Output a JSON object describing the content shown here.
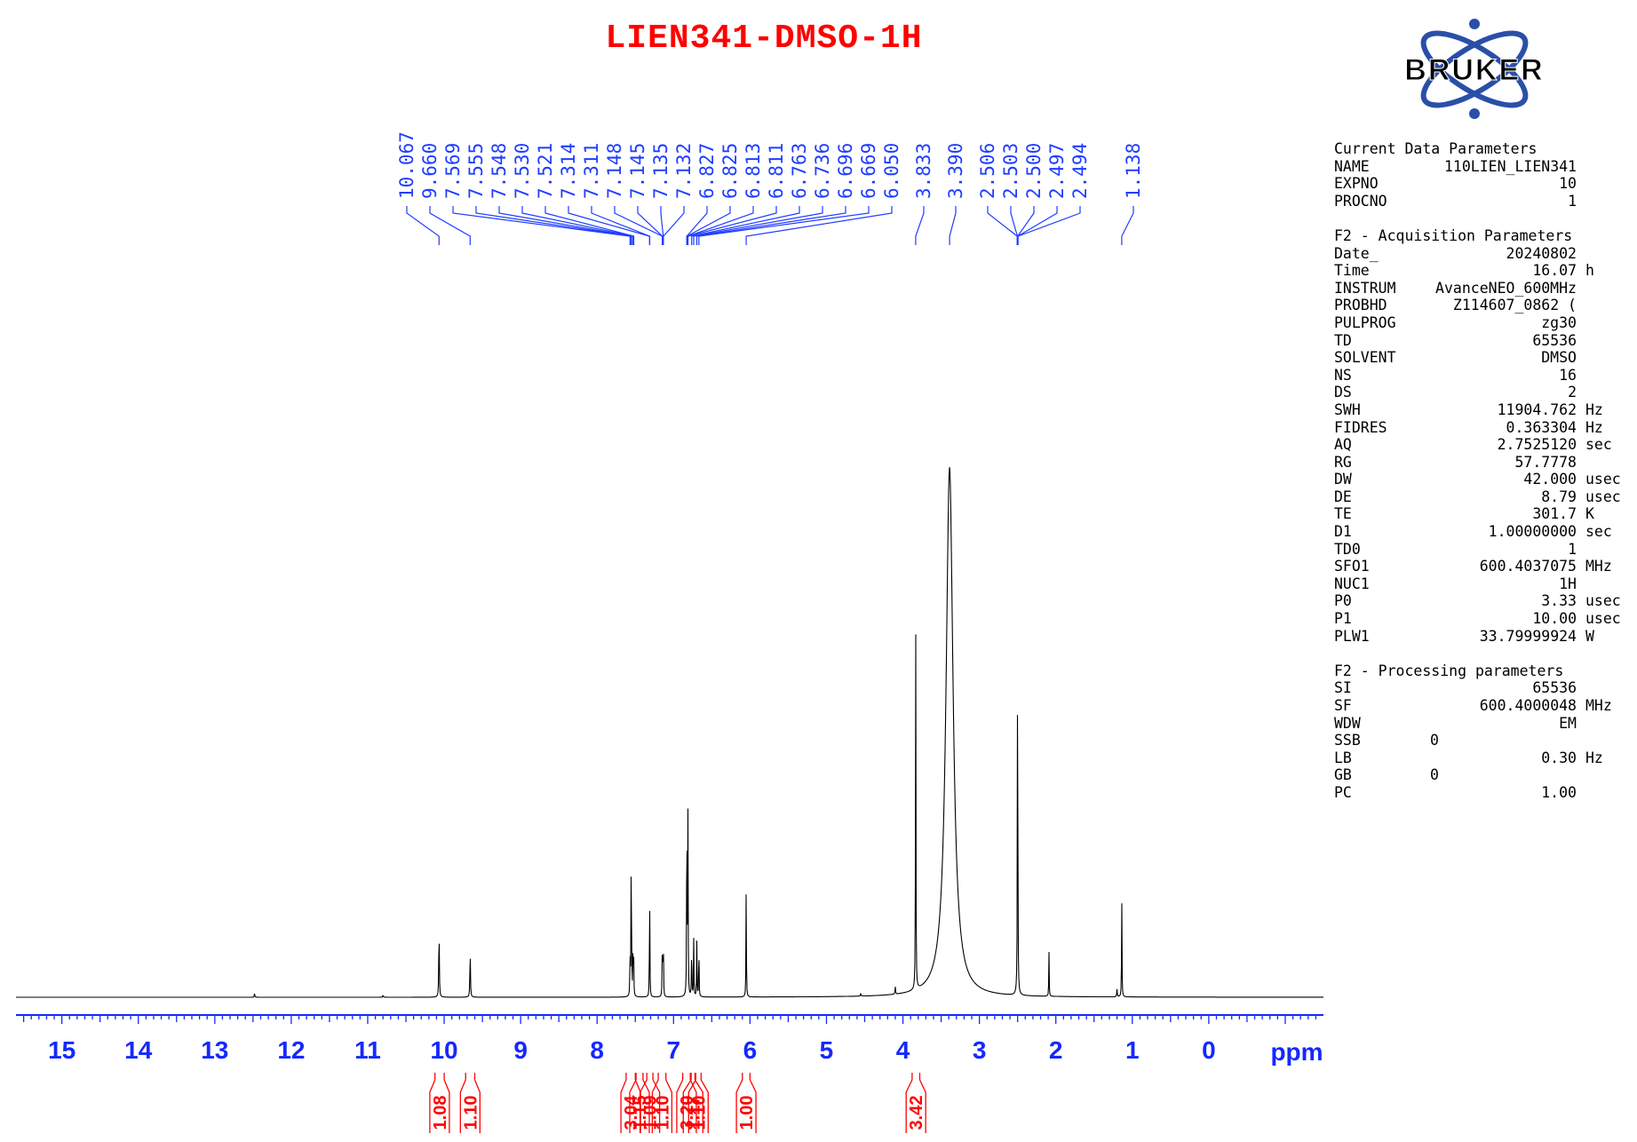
{
  "title": "LIEN341-DMSO-1H",
  "logo_text": "BRUKER",
  "colors": {
    "title": "#ff0000",
    "peak_labels": "#1f3dff",
    "integrals": "#ff0000",
    "axis": "#1428ff",
    "spectrum": "#000000",
    "logo_blue": "#2a4fa8",
    "logo_text": "#000000"
  },
  "params": {
    "current_header": "Current Data Parameters",
    "current": [
      {
        "k": "NAME",
        "v": "110LIEN_LIEN341",
        "u": ""
      },
      {
        "k": "EXPNO",
        "v": "10",
        "u": ""
      },
      {
        "k": "PROCNO",
        "v": "1",
        "u": ""
      }
    ],
    "acq_header": "F2 - Acquisition Parameters",
    "acq": [
      {
        "k": "Date_",
        "v": "20240802",
        "u": ""
      },
      {
        "k": "Time",
        "v": "16.07",
        "u": "h"
      },
      {
        "k": "INSTRUM",
        "v": "AvanceNEO_600MHz",
        "u": ""
      },
      {
        "k": "PROBHD",
        "v": "Z114607_0862 (",
        "u": ""
      },
      {
        "k": "PULPROG",
        "v": "zg30",
        "u": ""
      },
      {
        "k": "TD",
        "v": "65536",
        "u": ""
      },
      {
        "k": "SOLVENT",
        "v": "DMSO",
        "u": ""
      },
      {
        "k": "NS",
        "v": "16",
        "u": ""
      },
      {
        "k": "DS",
        "v": "2",
        "u": ""
      },
      {
        "k": "SWH",
        "v": "11904.762",
        "u": "Hz"
      },
      {
        "k": "FIDRES",
        "v": "0.363304",
        "u": "Hz"
      },
      {
        "k": "AQ",
        "v": "2.7525120",
        "u": "sec"
      },
      {
        "k": "RG",
        "v": "57.7778",
        "u": ""
      },
      {
        "k": "DW",
        "v": "42.000",
        "u": "usec"
      },
      {
        "k": "DE",
        "v": "8.79",
        "u": "usec"
      },
      {
        "k": "TE",
        "v": "301.7",
        "u": "K"
      },
      {
        "k": "D1",
        "v": "1.00000000",
        "u": "sec"
      },
      {
        "k": "TD0",
        "v": "1",
        "u": ""
      },
      {
        "k": "SFO1",
        "v": "600.4037075",
        "u": "MHz"
      },
      {
        "k": "NUC1",
        "v": "1H",
        "u": ""
      },
      {
        "k": "P0",
        "v": "3.33",
        "u": "usec"
      },
      {
        "k": "P1",
        "v": "10.00",
        "u": "usec"
      },
      {
        "k": "PLW1",
        "v": "33.79999924",
        "u": "W"
      }
    ],
    "proc_header": "F2 - Processing parameters",
    "proc": [
      {
        "k": "SI",
        "v": "65536",
        "u": ""
      },
      {
        "k": "SF",
        "v": "600.4000048",
        "u": "MHz"
      },
      {
        "k": "WDW",
        "v": "EM",
        "u": ""
      },
      {
        "k": "SSB",
        "v": "0",
        "u": "",
        "left": true
      },
      {
        "k": "LB",
        "v": "0.30",
        "u": "Hz"
      },
      {
        "k": "GB",
        "v": "0",
        "u": "",
        "left": true
      },
      {
        "k": "PC",
        "v": "1.00",
        "u": ""
      }
    ]
  },
  "chart_data": {
    "type": "line",
    "title": "LIEN341-DMSO-1H",
    "xlabel": "ppm",
    "xlim": [
      15.6,
      -1.5
    ],
    "x_reversed": true,
    "ticks": [
      15,
      14,
      13,
      12,
      11,
      10,
      9,
      8,
      7,
      6,
      5,
      4,
      3,
      2,
      1,
      0
    ],
    "peak_labels": [
      "10.067",
      "9.660",
      "7.569",
      "7.555",
      "7.548",
      "7.530",
      "7.521",
      "7.314",
      "7.311",
      "7.148",
      "7.145",
      "7.135",
      "7.132",
      "6.827",
      "6.825",
      "6.813",
      "6.811",
      "6.763",
      "6.736",
      "6.696",
      "6.669",
      "6.050",
      "3.833",
      "3.390",
      "2.506",
      "2.503",
      "2.500",
      "2.497",
      "2.494",
      "1.138"
    ],
    "peaks": [
      {
        "ppm": 10.067,
        "h": 0.138,
        "w": 0.004
      },
      {
        "ppm": 9.66,
        "h": 0.091,
        "w": 0.004
      },
      {
        "ppm": 7.569,
        "h": 0.09,
        "w": 0.003
      },
      {
        "ppm": 7.555,
        "h": 0.208,
        "w": 0.003
      },
      {
        "ppm": 7.548,
        "h": 0.11,
        "w": 0.003
      },
      {
        "ppm": 7.53,
        "h": 0.105,
        "w": 0.003
      },
      {
        "ppm": 7.521,
        "h": 0.065,
        "w": 0.003
      },
      {
        "ppm": 7.314,
        "h": 0.113,
        "w": 0.003
      },
      {
        "ppm": 7.311,
        "h": 0.1,
        "w": 0.003
      },
      {
        "ppm": 7.148,
        "h": 0.055,
        "w": 0.003
      },
      {
        "ppm": 7.145,
        "h": 0.06,
        "w": 0.003
      },
      {
        "ppm": 7.135,
        "h": 0.062,
        "w": 0.003
      },
      {
        "ppm": 7.132,
        "h": 0.055,
        "w": 0.003
      },
      {
        "ppm": 6.827,
        "h": 0.21,
        "w": 0.003
      },
      {
        "ppm": 6.825,
        "h": 0.205,
        "w": 0.003
      },
      {
        "ppm": 6.813,
        "h": 0.19,
        "w": 0.003
      },
      {
        "ppm": 6.811,
        "h": 0.185,
        "w": 0.003
      },
      {
        "ppm": 6.763,
        "h": 0.108,
        "w": 0.003
      },
      {
        "ppm": 6.736,
        "h": 0.11,
        "w": 0.003
      },
      {
        "ppm": 6.696,
        "h": 0.105,
        "w": 0.003
      },
      {
        "ppm": 6.669,
        "h": 0.11,
        "w": 0.003
      },
      {
        "ppm": 6.05,
        "h": 0.213,
        "w": 0.003
      },
      {
        "ppm": 3.833,
        "h": 0.725,
        "w": 0.003
      },
      {
        "ppm": 3.39,
        "h": 1.0,
        "w": 0.055
      },
      {
        "ppm": 2.5,
        "h": 0.68,
        "w": 0.003
      },
      {
        "ppm": 2.5,
        "h": 0.065,
        "w": 0.006
      },
      {
        "ppm": 2.09,
        "h": 0.085,
        "w": 0.003
      },
      {
        "ppm": 1.138,
        "h": 0.195,
        "w": 0.003
      },
      {
        "ppm": 12.48,
        "h": 0.007,
        "w": 0.004
      },
      {
        "ppm": 4.55,
        "h": 0.006,
        "w": 0.004
      },
      {
        "ppm": 4.1,
        "h": 0.014,
        "w": 0.004
      },
      {
        "ppm": 1.2,
        "h": 0.015,
        "w": 0.004
      },
      {
        "ppm": 10.8,
        "h": 0.004,
        "w": 0.004
      }
    ],
    "integrals": [
      {
        "label": "1.08",
        "from": 10.12,
        "to": 10.0
      },
      {
        "label": "1.10",
        "from": 9.72,
        "to": 9.6
      },
      {
        "label": "3.04",
        "from": 7.62,
        "to": 7.5
      },
      {
        "label": "1.15",
        "from": 7.49,
        "to": 7.4
      },
      {
        "label": "1.09",
        "from": 7.35,
        "to": 7.27
      },
      {
        "label": "1.10",
        "from": 7.2,
        "to": 7.1
      },
      {
        "label": "3.20",
        "from": 6.88,
        "to": 6.78
      },
      {
        "label": "1.17",
        "from": 6.77,
        "to": 6.72
      },
      {
        "label": "1.10",
        "from": 6.71,
        "to": 6.64
      },
      {
        "label": "1.00",
        "from": 6.1,
        "to": 6.0
      },
      {
        "label": "3.42",
        "from": 3.88,
        "to": 3.78
      }
    ]
  }
}
